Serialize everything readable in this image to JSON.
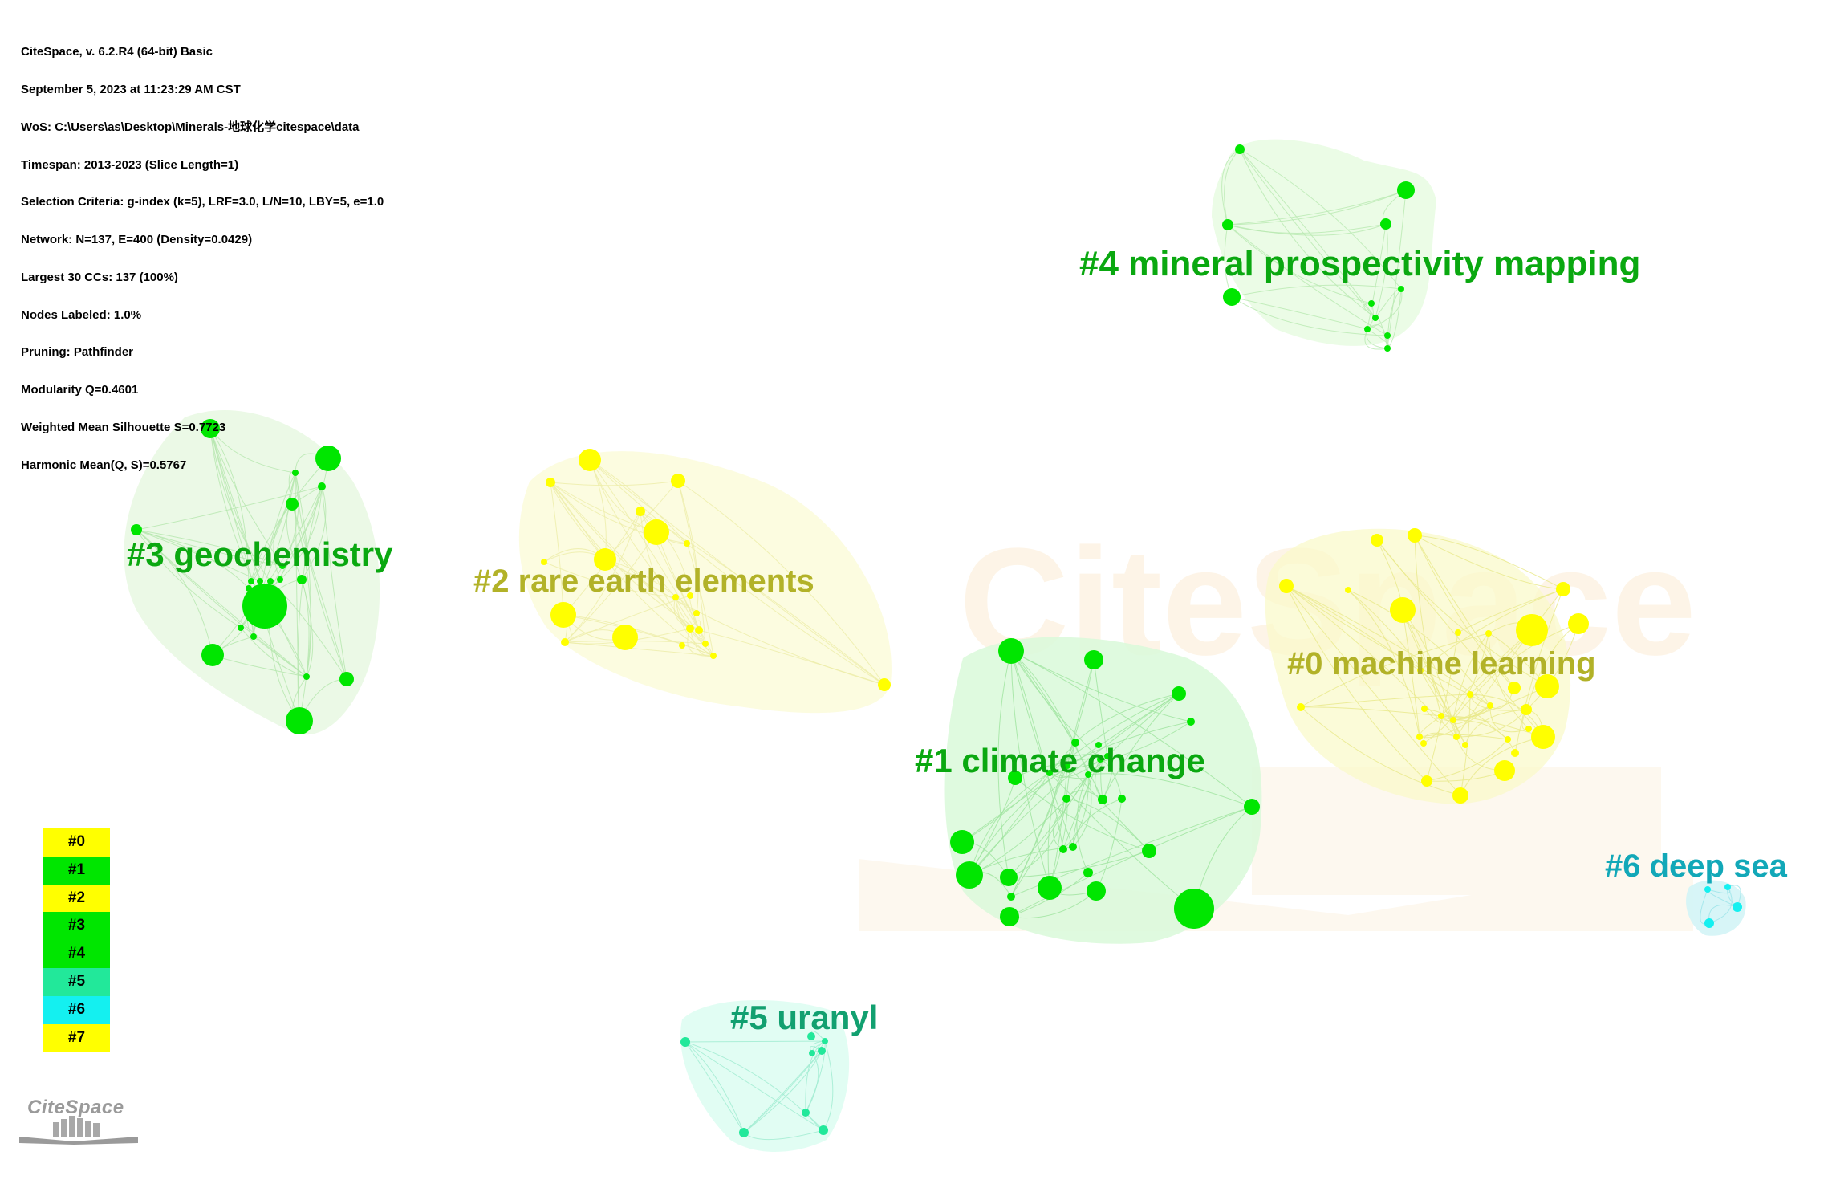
{
  "info_lines": [
    "CiteSpace, v. 6.2.R4 (64-bit) Basic",
    "September 5, 2023 at 11:23:29 AM CST",
    "WoS: C:\\Users\\as\\Desktop\\Minerals-地球化学citespace\\data",
    "Timespan: 2013-2023 (Slice Length=1)",
    "Selection Criteria: g-index (k=5), LRF=3.0, L/N=10, LBY=5, e=1.0",
    "Network: N=137, E=400 (Density=0.0429)",
    "Largest 30 CCs: 137 (100%)",
    "Nodes Labeled: 1.0%",
    "Pruning: Pathfinder",
    "Modularity Q=0.4601",
    "Weighted Mean Silhouette S=0.7723",
    "Harmonic Mean(Q, S)=0.5767"
  ],
  "watermark": "CiteSpace",
  "logo_text": "CiteSpace",
  "colors": {
    "yellow": "#ffff00",
    "green": "#00e600",
    "teal": "#22e89a",
    "cyan": "#14f0f0",
    "label_green": "#00aa00",
    "label_olive": "#b0b020",
    "label_teal": "#10a070",
    "label_cyan": "#10b0c0"
  },
  "legend": [
    {
      "label": "#0",
      "color": "#ffff00"
    },
    {
      "label": "#1",
      "color": "#00e600"
    },
    {
      "label": "#2",
      "color": "#ffff00"
    },
    {
      "label": "#3",
      "color": "#00e600"
    },
    {
      "label": "#4",
      "color": "#00e600"
    },
    {
      "label": "#5",
      "color": "#22e89a"
    },
    {
      "label": "#6",
      "color": "#14f0f0"
    },
    {
      "label": "#7",
      "color": "#ffff00"
    }
  ],
  "clusters": [
    {
      "id": 0,
      "label": "#0 machine learning"
    },
    {
      "id": 1,
      "label": "#1 climate change"
    },
    {
      "id": 2,
      "label": "#2 rare earth elements"
    },
    {
      "id": 3,
      "label": "#3 geochemistry"
    },
    {
      "id": 4,
      "label": "#4 mineral prospectivity mapping"
    },
    {
      "id": 5,
      "label": "#5 uranyl"
    },
    {
      "id": 6,
      "label": "#6 deep sea"
    }
  ]
}
